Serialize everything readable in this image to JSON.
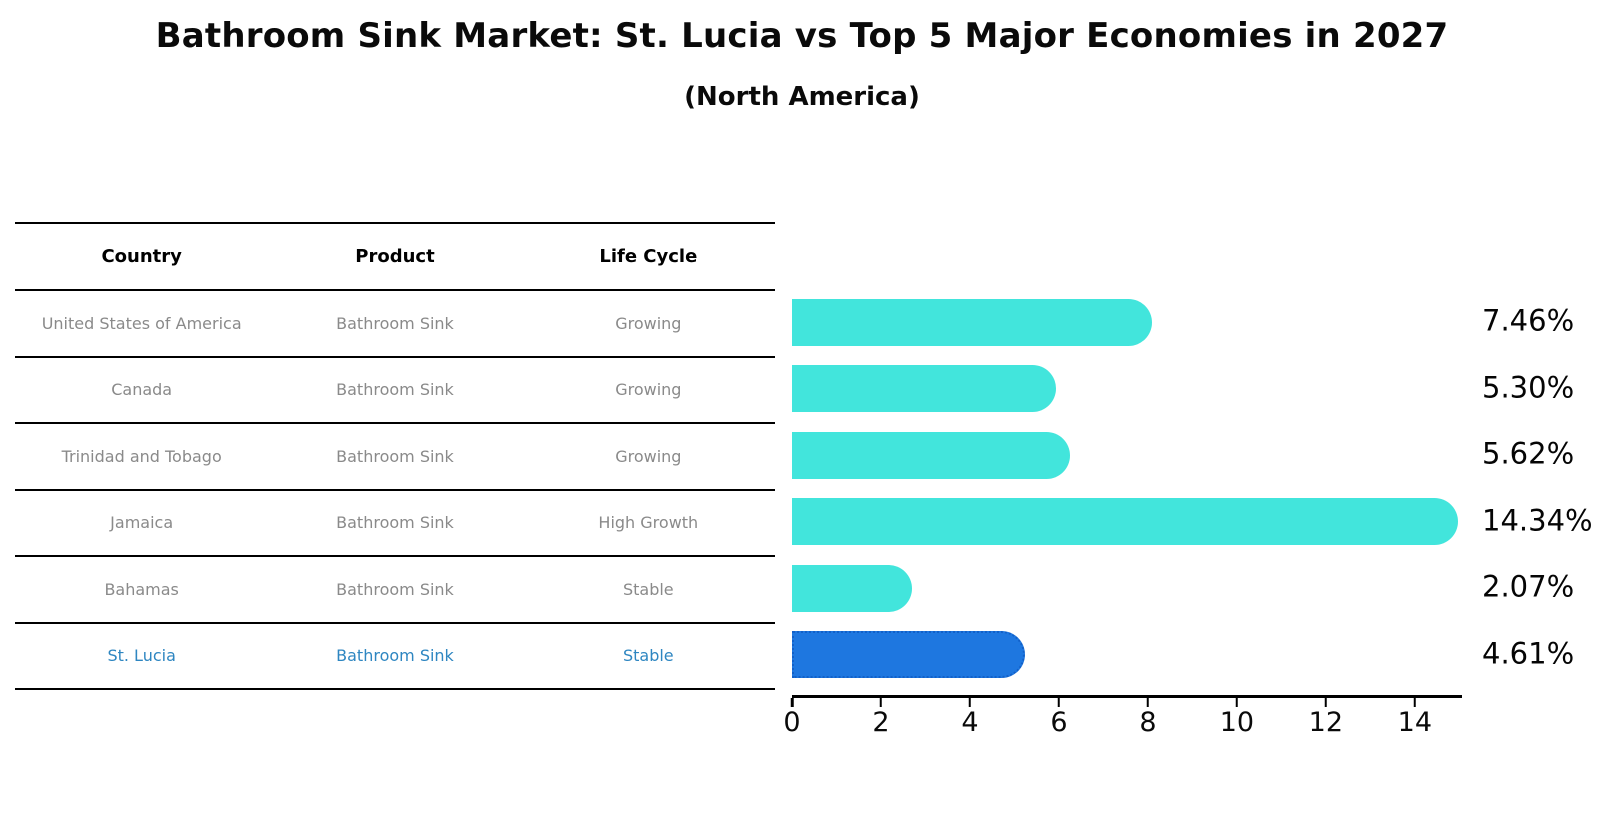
{
  "title": "Bathroom Sink Market: St. Lucia vs Top 5 Major Economies in 2027",
  "subtitle": "(North America)",
  "table": {
    "headers": [
      "Country",
      "Product",
      "Life Cycle"
    ],
    "rows": [
      {
        "country": "United States of America",
        "product": "Bathroom Sink",
        "life_cycle": "Growing",
        "highlighted": false
      },
      {
        "country": "Canada",
        "product": "Bathroom Sink",
        "life_cycle": "Growing",
        "highlighted": false
      },
      {
        "country": "Trinidad and Tobago",
        "product": "Bathroom Sink",
        "life_cycle": "Growing",
        "highlighted": false
      },
      {
        "country": "Jamaica",
        "product": "Bathroom Sink",
        "life_cycle": "High Growth",
        "highlighted": false
      },
      {
        "country": "Bahamas",
        "product": "Bathroom Sink",
        "life_cycle": "Stable",
        "highlighted": false
      },
      {
        "country": "St. Lucia",
        "product": "Bathroom Sink",
        "life_cycle": "Stable",
        "highlighted": true
      }
    ]
  },
  "chart_data": {
    "type": "bar",
    "orientation": "horizontal",
    "title": "Bathroom Sink Market: St. Lucia vs Top 5 Major Economies in 2027",
    "subtitle": "(North America)",
    "categories": [
      "United States of America",
      "Canada",
      "Trinidad and Tobago",
      "Jamaica",
      "Bahamas",
      "St. Lucia"
    ],
    "values": [
      7.46,
      5.3,
      5.62,
      14.34,
      2.07,
      4.61
    ],
    "value_labels": [
      "7.46%",
      "5.30%",
      "5.62%",
      "14.34%",
      "2.07%",
      "4.61%"
    ],
    "x_ticks": [
      0,
      2,
      4,
      6,
      8,
      10,
      12,
      14
    ],
    "xlim": [
      0,
      15.06
    ],
    "xlabel": "",
    "ylabel": "",
    "grid": false,
    "legend": false,
    "highlight_index": 5
  },
  "colors": {
    "bar": "#42E5DC",
    "highlight_bar": "#1E77E0",
    "highlight_border": "#1260C8",
    "highlight_text": "#2E86C1",
    "cell_text": "#8A8A8A",
    "axis": "#000000",
    "background": "#FFFFFF"
  }
}
